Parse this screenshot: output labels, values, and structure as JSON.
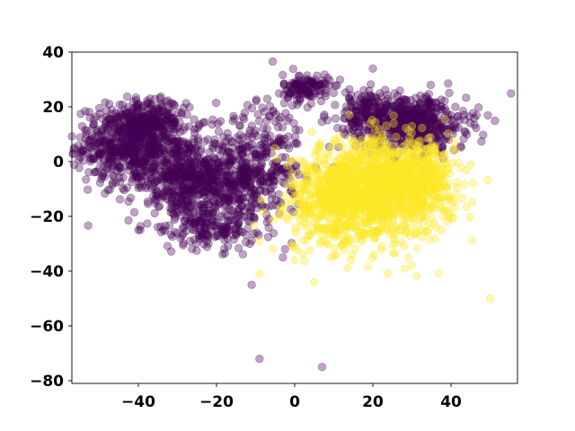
{
  "chart_data": {
    "type": "scatter",
    "title": "",
    "xlabel": "",
    "ylabel": "",
    "xlim": [
      -57,
      57
    ],
    "ylim": [
      -81,
      40
    ],
    "xticks": [
      -40,
      -20,
      0,
      20,
      40
    ],
    "yticks": [
      -80,
      -60,
      -40,
      -20,
      0,
      20,
      40
    ],
    "xtick_labels": [
      "−40",
      "−20",
      "0",
      "20",
      "40"
    ],
    "ytick_labels": [
      "−80",
      "−60",
      "−40",
      "−20",
      "0",
      "20",
      "40"
    ],
    "grid": false,
    "legend": "none",
    "marker_alpha": 0.35,
    "series": [
      {
        "color": "#440154",
        "clusters": [
          {
            "cx": -42,
            "cy": 6,
            "sx": 7,
            "sy": 7,
            "n": 550
          },
          {
            "cx": -38,
            "cy": 15,
            "sx": 5,
            "sy": 4,
            "n": 200
          },
          {
            "cx": -30,
            "cy": -6,
            "sx": 6,
            "sy": 8,
            "n": 350
          },
          {
            "cx": -17,
            "cy": -6,
            "sx": 7,
            "sy": 9,
            "n": 500
          },
          {
            "cx": -22,
            "cy": -24,
            "sx": 6,
            "sy": 4,
            "n": 140
          },
          {
            "cx": -6,
            "cy": 2,
            "sx": 4,
            "sy": 12,
            "n": 150
          },
          {
            "cx": 3,
            "cy": 27,
            "sx": 3,
            "sy": 2.5,
            "n": 120
          },
          {
            "cx": 30,
            "cy": 14,
            "sx": 7,
            "sy": 5,
            "n": 550
          },
          {
            "cx": 18,
            "cy": 18,
            "sx": 5,
            "sy": 4,
            "n": 150
          }
        ],
        "outliers": [
          {
            "x": -9,
            "y": -72
          },
          {
            "x": 7,
            "y": -75
          },
          {
            "x": -11,
            "y": -45
          },
          {
            "x": 20,
            "y": 34
          },
          {
            "x": -3,
            "y": -35
          },
          {
            "x": 10,
            "y": -2
          },
          {
            "x": -14,
            "y": 13
          }
        ]
      },
      {
        "color": "#fde725",
        "clusters": [
          {
            "cx": 22,
            "cy": -10,
            "sx": 9,
            "sy": 9,
            "n": 1100
          },
          {
            "cx": 10,
            "cy": -16,
            "sx": 6,
            "sy": 8,
            "n": 350
          },
          {
            "cx": 30,
            "cy": -4,
            "sx": 6,
            "sy": 5,
            "n": 250
          }
        ],
        "outliers": [
          {
            "x": 50,
            "y": -50
          },
          {
            "x": 5,
            "y": -44
          },
          {
            "x": -9,
            "y": -41
          },
          {
            "x": 0,
            "y": -36
          },
          {
            "x": -9,
            "y": -29
          },
          {
            "x": 45,
            "y": -1
          }
        ]
      }
    ]
  }
}
